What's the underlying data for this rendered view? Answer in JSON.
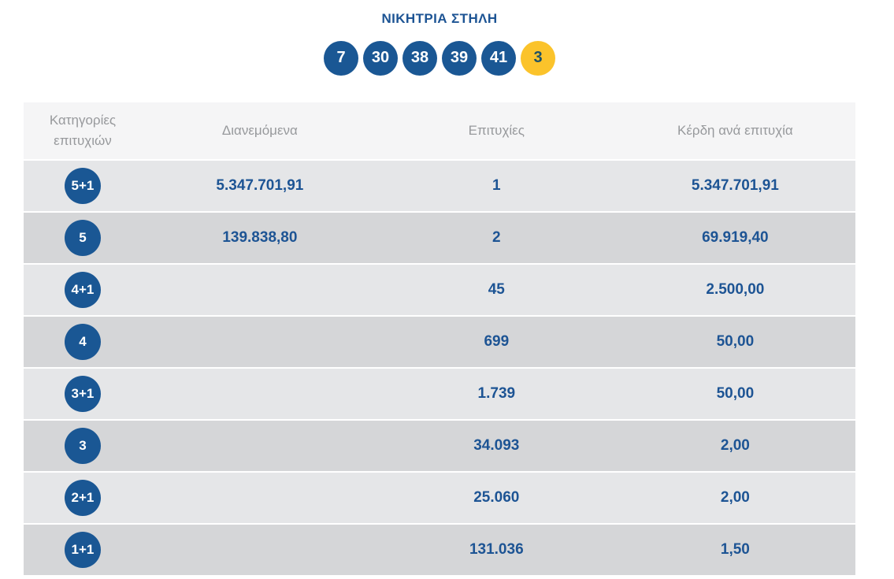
{
  "header": {
    "title": "ΝΙΚΗΤΡΙΑ ΣΤΗΛΗ",
    "numbers": [
      {
        "value": "7",
        "type": "main"
      },
      {
        "value": "30",
        "type": "main"
      },
      {
        "value": "38",
        "type": "main"
      },
      {
        "value": "39",
        "type": "main"
      },
      {
        "value": "41",
        "type": "main"
      },
      {
        "value": "3",
        "type": "joker"
      }
    ]
  },
  "table": {
    "columns": [
      "Κατηγορίες επιτυχιών",
      "Διανεμόμενα",
      "Επιτυχίες",
      "Κέρδη ανά επιτυχία"
    ],
    "rows": [
      {
        "category": "5+1",
        "distributed": "5.347.701,91",
        "winners": "1",
        "prize": "5.347.701,91"
      },
      {
        "category": "5",
        "distributed": "139.838,80",
        "winners": "2",
        "prize": "69.919,40"
      },
      {
        "category": "4+1",
        "distributed": "",
        "winners": "45",
        "prize": "2.500,00"
      },
      {
        "category": "4",
        "distributed": "",
        "winners": "699",
        "prize": "50,00"
      },
      {
        "category": "3+1",
        "distributed": "",
        "winners": "1.739",
        "prize": "50,00"
      },
      {
        "category": "3",
        "distributed": "",
        "winners": "34.093",
        "prize": "2,00"
      },
      {
        "category": "2+1",
        "distributed": "",
        "winners": "25.060",
        "prize": "2,00"
      },
      {
        "category": "1+1",
        "distributed": "",
        "winners": "131.036",
        "prize": "1,50"
      }
    ]
  },
  "colors": {
    "primary_blue": "#1d5494",
    "ball_blue": "#1a5794",
    "joker_yellow": "#fbc32b",
    "joker_number": "#1d5166",
    "header_bg": "#f5f5f6",
    "header_text": "#97999c",
    "row_light": "#e5e6e8",
    "row_dark": "#d5d6d8"
  }
}
